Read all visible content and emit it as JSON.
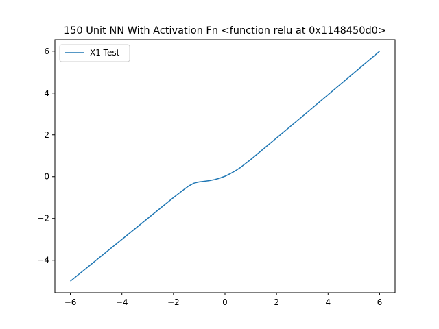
{
  "chart_data": {
    "type": "line",
    "title": "150 Unit NN With Activation Fn <function relu at 0x1148450d0>",
    "xlabel": "",
    "ylabel": "",
    "xlim": [
      -6.6,
      6.6
    ],
    "ylim": [
      -5.55,
      6.55
    ],
    "xticks": [
      -6,
      -4,
      -2,
      0,
      2,
      4,
      6
    ],
    "yticks": [
      -4,
      -2,
      0,
      2,
      4,
      6
    ],
    "xtick_labels": [
      "−6",
      "−4",
      "−2",
      "0",
      "2",
      "4",
      "6"
    ],
    "ytick_labels": [
      "−4",
      "−2",
      "0",
      "2",
      "4",
      "6"
    ],
    "grid": false,
    "legend_position": "top-left",
    "series": [
      {
        "name": "X1 Test",
        "color": "#1f77b4",
        "x": [
          -6,
          -5,
          -4,
          -3,
          -2,
          -1.6,
          -1.4,
          -1.2,
          -1.0,
          -0.8,
          -0.6,
          -0.4,
          -0.2,
          0,
          0.2,
          0.4,
          0.6,
          1,
          2,
          3,
          4,
          5,
          6
        ],
        "y": [
          -5,
          -4,
          -3,
          -2,
          -1,
          -0.62,
          -0.44,
          -0.31,
          -0.25,
          -0.22,
          -0.19,
          -0.14,
          -0.07,
          0.02,
          0.14,
          0.28,
          0.44,
          0.82,
          1.85,
          2.88,
          3.92,
          4.96,
          6.0
        ]
      }
    ]
  }
}
